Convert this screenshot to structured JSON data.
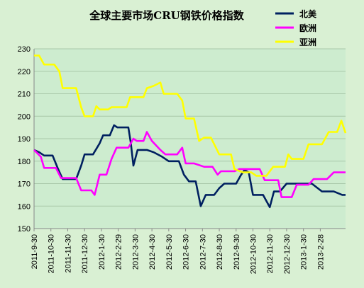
{
  "chart_data": {
    "type": "line",
    "title": "全球主要市场CRU钢铁价格指数",
    "xlabel": "",
    "ylabel": "",
    "ylim": [
      150,
      230
    ],
    "yticks": [
      150,
      160,
      170,
      180,
      190,
      200,
      210,
      220,
      230
    ],
    "x_tick_labels": [
      "2011-9-30",
      "2011-10-30",
      "2011-11-30",
      "2011-12-30",
      "2012-1-30",
      "2012-2-29",
      "2012-3-30",
      "2012-4-30",
      "2012-5-30",
      "2012-6-30",
      "2012-7-30",
      "2012-8-30",
      "2012-9-30",
      "2012-10-30",
      "2012-11-30",
      "2012-12-30",
      "2013-1-30",
      "2013-2-28"
    ],
    "x_range": [
      0,
      18
    ],
    "grid": true,
    "legend_position": "top-right",
    "series": [
      {
        "name": "北美",
        "color": "#002060",
        "points": [
          [
            0,
            185
          ],
          [
            0.3,
            184
          ],
          [
            0.6,
            182.5
          ],
          [
            1.1,
            182.5
          ],
          [
            1.4,
            177
          ],
          [
            1.7,
            172
          ],
          [
            2.2,
            172
          ],
          [
            2.5,
            172
          ],
          [
            2.8,
            178
          ],
          [
            3.0,
            183
          ],
          [
            3.5,
            183
          ],
          [
            3.9,
            188
          ],
          [
            4.1,
            191.5
          ],
          [
            4.5,
            191.5
          ],
          [
            4.75,
            196
          ],
          [
            4.95,
            195
          ],
          [
            5.6,
            195
          ],
          [
            5.75,
            188
          ],
          [
            5.9,
            178
          ],
          [
            6.15,
            185
          ],
          [
            6.7,
            185
          ],
          [
            7.1,
            184
          ],
          [
            7.6,
            182
          ],
          [
            8.0,
            180
          ],
          [
            8.6,
            180
          ],
          [
            8.9,
            174
          ],
          [
            9.2,
            171
          ],
          [
            9.6,
            171
          ],
          [
            9.9,
            160
          ],
          [
            10.2,
            165
          ],
          [
            10.7,
            165
          ],
          [
            11.0,
            168
          ],
          [
            11.3,
            170
          ],
          [
            12.0,
            170
          ],
          [
            12.3,
            174
          ],
          [
            12.5,
            176
          ],
          [
            12.75,
            175
          ],
          [
            13.0,
            165
          ],
          [
            13.6,
            165
          ],
          [
            14.0,
            159.5
          ],
          [
            14.25,
            166.5
          ],
          [
            14.6,
            166.5
          ],
          [
            15.0,
            170
          ],
          [
            15.4,
            170
          ],
          [
            16.5,
            170
          ],
          [
            17.1,
            166.5
          ],
          [
            17.8,
            166.5
          ],
          [
            18.3,
            165
          ],
          [
            18.5,
            165
          ]
        ]
      },
      {
        "name": "欧洲",
        "color": "#ff00ff",
        "points": [
          [
            0,
            185
          ],
          [
            0.4,
            182
          ],
          [
            0.6,
            177
          ],
          [
            1.3,
            177
          ],
          [
            1.6,
            172.5
          ],
          [
            2.2,
            172.5
          ],
          [
            2.5,
            172.5
          ],
          [
            2.8,
            167
          ],
          [
            3.4,
            167
          ],
          [
            3.6,
            165
          ],
          [
            3.9,
            174
          ],
          [
            4.3,
            174
          ],
          [
            4.6,
            181
          ],
          [
            4.9,
            186
          ],
          [
            5.6,
            186
          ],
          [
            5.9,
            190
          ],
          [
            6.1,
            189
          ],
          [
            6.5,
            189
          ],
          [
            6.7,
            193
          ],
          [
            7.0,
            189
          ],
          [
            7.5,
            185
          ],
          [
            7.8,
            183
          ],
          [
            8.5,
            183
          ],
          [
            8.8,
            186
          ],
          [
            9.0,
            179
          ],
          [
            9.5,
            179
          ],
          [
            10.1,
            177.5
          ],
          [
            10.6,
            177.5
          ],
          [
            10.9,
            174
          ],
          [
            11.1,
            175.5
          ],
          [
            11.9,
            175.5
          ],
          [
            12.2,
            176.5
          ],
          [
            13.4,
            176.5
          ],
          [
            13.7,
            171.5
          ],
          [
            14.5,
            171.5
          ],
          [
            14.7,
            164
          ],
          [
            15.3,
            164
          ],
          [
            15.6,
            169.5
          ],
          [
            16.3,
            169.5
          ],
          [
            16.6,
            172
          ],
          [
            17.4,
            172
          ],
          [
            17.8,
            175
          ],
          [
            18.5,
            175
          ]
        ]
      },
      {
        "name": "亚洲",
        "color": "#ffff00",
        "points": [
          [
            0,
            227
          ],
          [
            0.3,
            227
          ],
          [
            0.6,
            223
          ],
          [
            1.2,
            223
          ],
          [
            1.5,
            220
          ],
          [
            1.7,
            212.5
          ],
          [
            2.5,
            212.5
          ],
          [
            2.8,
            204
          ],
          [
            3.0,
            200
          ],
          [
            3.5,
            200
          ],
          [
            3.7,
            204.5
          ],
          [
            3.9,
            203
          ],
          [
            4.4,
            203
          ],
          [
            4.6,
            204
          ],
          [
            5.5,
            204
          ],
          [
            5.7,
            208.5
          ],
          [
            6.5,
            208.5
          ],
          [
            6.7,
            212.5
          ],
          [
            7.1,
            213.5
          ],
          [
            7.5,
            215
          ],
          [
            7.7,
            210
          ],
          [
            8.5,
            210
          ],
          [
            8.8,
            207
          ],
          [
            9.0,
            199
          ],
          [
            9.5,
            199
          ],
          [
            9.8,
            189
          ],
          [
            10.1,
            190.5
          ],
          [
            10.5,
            190.5
          ],
          [
            10.8,
            186
          ],
          [
            11.0,
            183
          ],
          [
            11.7,
            183
          ],
          [
            11.9,
            176.5
          ],
          [
            12.4,
            175
          ],
          [
            12.9,
            175
          ],
          [
            13.2,
            173.5
          ],
          [
            13.8,
            173.5
          ],
          [
            14.2,
            177.5
          ],
          [
            14.9,
            177.5
          ],
          [
            15.1,
            183
          ],
          [
            15.3,
            181
          ],
          [
            16.0,
            181
          ],
          [
            16.3,
            187.5
          ],
          [
            17.1,
            187.5
          ],
          [
            17.5,
            193
          ],
          [
            18.0,
            193
          ],
          [
            18.25,
            198
          ],
          [
            18.5,
            192.5
          ]
        ]
      }
    ]
  }
}
